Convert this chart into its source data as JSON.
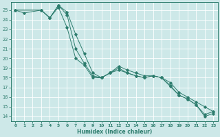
{
  "title": "",
  "xlabel": "Humidex (Indice chaleur)",
  "bg_color": "#cde8e8",
  "line_color": "#2e7d6e",
  "grid_color": "#ffffff",
  "xlim": [
    -0.5,
    23.5
  ],
  "ylim": [
    13.5,
    25.8
  ],
  "yticks": [
    14,
    15,
    16,
    17,
    18,
    19,
    20,
    21,
    22,
    23,
    24,
    25
  ],
  "xticks": [
    0,
    1,
    2,
    3,
    4,
    5,
    6,
    7,
    8,
    9,
    10,
    11,
    12,
    13,
    14,
    15,
    16,
    17,
    18,
    19,
    20,
    21,
    22,
    23
  ],
  "series": [
    {
      "x": [
        0,
        1,
        3,
        4,
        5,
        6,
        7,
        8,
        9,
        10,
        11,
        12,
        13,
        14,
        15,
        16,
        17,
        18,
        19,
        20,
        21,
        22,
        23
      ],
      "y": [
        25,
        24.7,
        25,
        24.2,
        25.3,
        23.2,
        20.0,
        19.3,
        18.0,
        18.0,
        18.5,
        18.8,
        18.5,
        18.2,
        18.0,
        18.2,
        18.0,
        17.1,
        16.2,
        15.8,
        15.2,
        14.0,
        14.3
      ]
    },
    {
      "x": [
        0,
        3,
        4,
        5,
        6,
        7,
        8,
        9,
        10,
        11,
        12,
        13,
        14,
        15,
        16,
        17,
        18,
        19,
        20,
        21,
        22,
        23
      ],
      "y": [
        25,
        25.0,
        24.2,
        25.5,
        24.5,
        21.0,
        19.5,
        18.2,
        18.0,
        18.5,
        19.0,
        18.5,
        18.2,
        18.0,
        18.2,
        18.0,
        17.2,
        16.2,
        15.8,
        15.2,
        14.2,
        14.5
      ]
    },
    {
      "x": [
        0,
        3,
        4,
        5,
        6,
        7,
        8,
        9,
        10,
        11,
        12,
        13,
        14,
        15,
        16,
        17,
        18,
        19,
        20,
        21,
        22,
        23
      ],
      "y": [
        25,
        25.0,
        24.2,
        25.5,
        24.8,
        22.5,
        20.5,
        18.5,
        18.0,
        18.5,
        19.2,
        18.8,
        18.5,
        18.2,
        18.2,
        18.0,
        17.5,
        16.5,
        16.0,
        15.5,
        15.0,
        14.5
      ]
    }
  ]
}
